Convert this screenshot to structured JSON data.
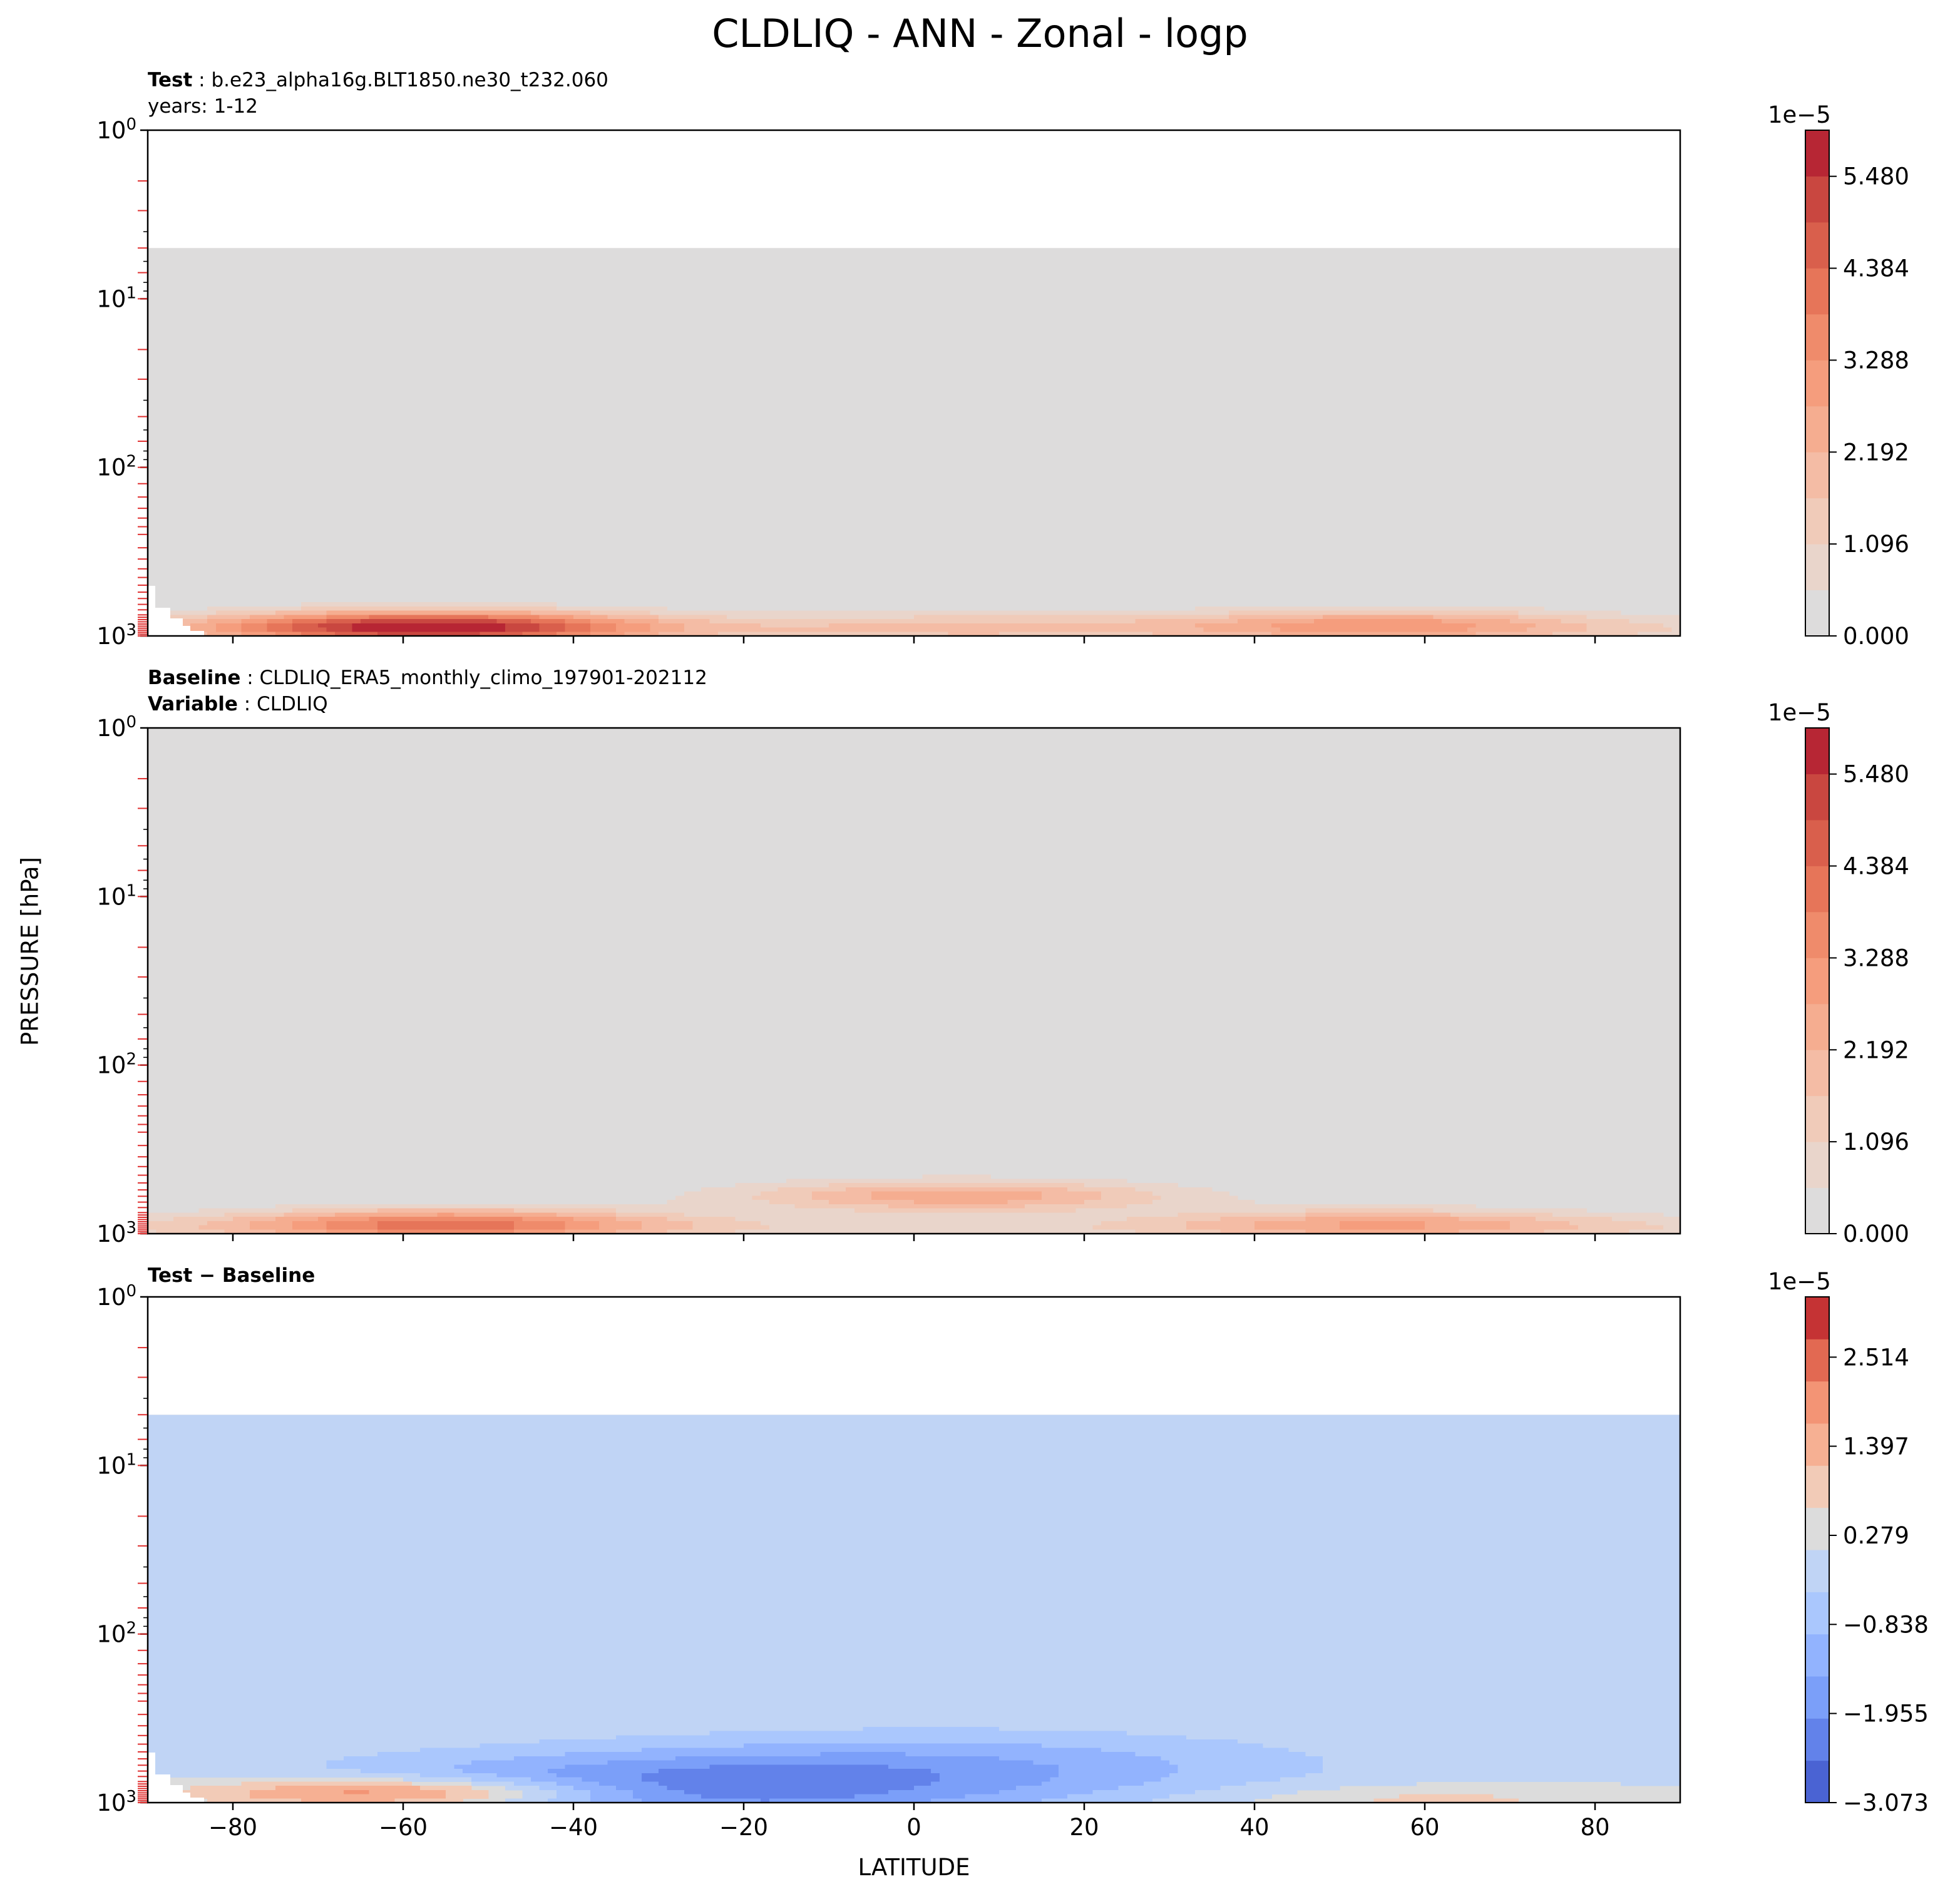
{
  "figure": {
    "title": "CLDLIQ - ANN - Zonal - logp",
    "ylabel": "PRESSURE [hPa]",
    "xlabel": "LATITUDE"
  },
  "panels": [
    {
      "id": "test",
      "header_line1_key": "Test",
      "header_line1_value": "b.e23_alpha16g.BLT1850.ne30_t232.060",
      "header_line2_key": "",
      "header_line2_value": "years: 1-12"
    },
    {
      "id": "baseline",
      "header_line1_key": "Baseline",
      "header_line1_value": "CLDLIQ_ERA5_monthly_climo_197901-202112",
      "header_line2_key": "Variable",
      "header_line2_value": "CLDLIQ"
    },
    {
      "id": "diff",
      "header_line1_key": "Test − Baseline",
      "header_line1_value": "",
      "header_line2_key": "",
      "header_line2_value": ""
    }
  ],
  "chart_data": [
    {
      "type": "heatmap",
      "panel": "Test",
      "x_ticks": [
        -80,
        -60,
        -40,
        -20,
        0,
        20,
        40,
        60,
        80
      ],
      "xlim": [
        -90,
        90
      ],
      "y_scale": "log",
      "y_inverted": true,
      "ylim": [
        1000,
        1
      ],
      "y_tick_labels": [
        "10^0",
        "10^1",
        "10^2",
        "10^3"
      ],
      "data_top_pressure_hPa": 5,
      "colorbar": {
        "offset_text": "1e−5",
        "ticks": [
          0.0,
          1.096,
          2.192,
          3.288,
          4.384,
          5.48
        ],
        "tick_labels": [
          "0.000",
          "1.096",
          "2.192",
          "3.288",
          "4.384",
          "5.480"
        ],
        "range": [
          0,
          6.03
        ],
        "colors": [
          "#dddcdc",
          "#e9d5cb",
          "#f0cbb9",
          "#f4bca5",
          "#f5ad90",
          "#f59d7d",
          "#ef8b6b",
          "#e67559",
          "#d95f4c",
          "#c94740",
          "#b72634"
        ]
      },
      "features": [
        {
          "lat": -57,
          "p_center_hPa": 880,
          "value": 5.6
        },
        {
          "lat": 55,
          "p_center_hPa": 860,
          "value": 2.6
        },
        {
          "lat": 5,
          "p_center_hPa": 880,
          "value": 1.2
        }
      ]
    },
    {
      "type": "heatmap",
      "panel": "Baseline",
      "x_ticks": [
        -80,
        -60,
        -40,
        -20,
        0,
        20,
        40,
        60,
        80
      ],
      "xlim": [
        -90,
        90
      ],
      "y_scale": "log",
      "y_inverted": true,
      "ylim": [
        1000,
        1
      ],
      "y_tick_labels": [
        "10^0",
        "10^1",
        "10^2",
        "10^3"
      ],
      "data_top_pressure_hPa": 1,
      "colorbar": {
        "offset_text": "1e−5",
        "ticks": [
          0.0,
          1.096,
          2.192,
          3.288,
          4.384,
          5.48
        ],
        "tick_labels": [
          "0.000",
          "1.096",
          "2.192",
          "3.288",
          "4.384",
          "5.480"
        ],
        "range": [
          0,
          6.03
        ],
        "colors": [
          "#dddcdc",
          "#e9d5cb",
          "#f0cbb9",
          "#f4bca5",
          "#f5ad90",
          "#f59d7d",
          "#ef8b6b",
          "#e67559",
          "#d95f4c",
          "#c94740",
          "#b72634"
        ]
      },
      "features": [
        {
          "lat": -55,
          "p_center_hPa": 880,
          "value": 3.6
        },
        {
          "lat": 5,
          "p_center_hPa": 600,
          "value": 2.6
        },
        {
          "lat": 55,
          "p_center_hPa": 880,
          "value": 2.2
        }
      ]
    },
    {
      "type": "heatmap",
      "panel": "Test − Baseline",
      "x_ticks": [
        -80,
        -60,
        -40,
        -20,
        0,
        20,
        40,
        60,
        80
      ],
      "xlim": [
        -90,
        90
      ],
      "y_scale": "log",
      "y_inverted": true,
      "ylim": [
        1000,
        1
      ],
      "y_tick_labels": [
        "10^0",
        "10^1",
        "10^2",
        "10^3"
      ],
      "data_top_pressure_hPa": 5,
      "colorbar": {
        "offset_text": "1e−5",
        "ticks": [
          -3.073,
          -1.955,
          -0.838,
          0.279,
          1.397,
          2.514
        ],
        "tick_labels": [
          "−3.073",
          "−1.955",
          "−0.838",
          "0.279",
          "1.397",
          "2.514"
        ],
        "range": [
          -3.073,
          3.27
        ],
        "colors": [
          "#4a63d3",
          "#6282ea",
          "#7b9ff9",
          "#92b3fe",
          "#aac7fd",
          "#c0d4f5",
          "#dcdcdc",
          "#f2cbb7",
          "#f6b093",
          "#f39475",
          "#e26952",
          "#c53334"
        ]
      },
      "features": [
        {
          "lat": -60,
          "p_center_hPa": 880,
          "value": 2.9
        },
        {
          "lat": -30,
          "p_center_hPa": 850,
          "value": -2.2
        },
        {
          "lat": 6,
          "p_center_hPa": 600,
          "value": -1.2
        },
        {
          "lat": 60,
          "p_center_hPa": 960,
          "value": 0.8
        }
      ]
    }
  ]
}
